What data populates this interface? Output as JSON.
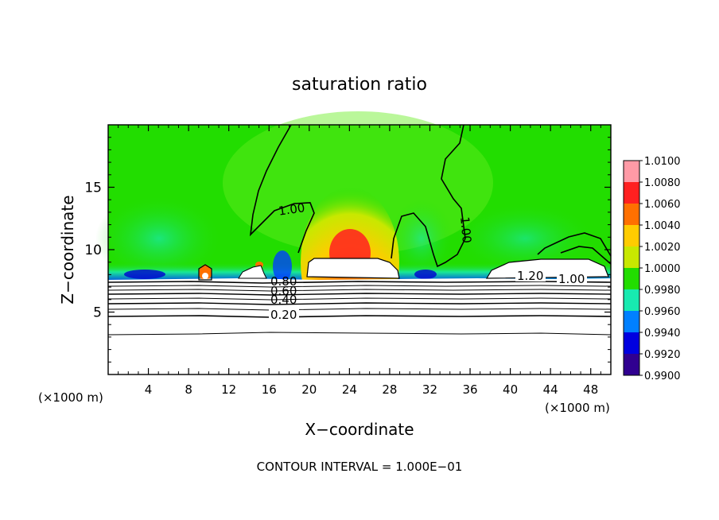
{
  "chart_data": {
    "type": "heatmap",
    "title": "saturation ratio",
    "xlabel": "X−coordinate",
    "ylabel": "Z−coordinate",
    "x_unit": "(×1000 m)",
    "y_unit": "(×1000 m)",
    "footer": "CONTOUR INTERVAL = 1.000E−01",
    "xlim": [
      0,
      50
    ],
    "ylim": [
      0,
      20
    ],
    "x_ticks": [
      "4",
      "8",
      "12",
      "16",
      "20",
      "24",
      "28",
      "32",
      "36",
      "40",
      "44",
      "48"
    ],
    "y_ticks": [
      "5",
      "10",
      "15"
    ],
    "contour_labels": [
      "1.00",
      "1.00",
      "1.20",
      "1.00",
      "0.80",
      "0.60",
      "0.40",
      "0.20"
    ],
    "colorbar": {
      "levels": [
        "1.0100",
        "1.0080",
        "1.0060",
        "1.0040",
        "1.0020",
        "1.0000",
        "0.9980",
        "0.9960",
        "0.9940",
        "0.9920",
        "0.9900"
      ],
      "colors": [
        "#ff9aa6",
        "#ff2020",
        "#ff7000",
        "#ffcc00",
        "#c8e800",
        "#22dd00",
        "#18eab0",
        "#0080ff",
        "#0000e0",
        "#300090"
      ]
    },
    "colors": {
      "background": "#ffffff",
      "field_high": "#22dd00",
      "field_low": "#ffffff"
    }
  }
}
